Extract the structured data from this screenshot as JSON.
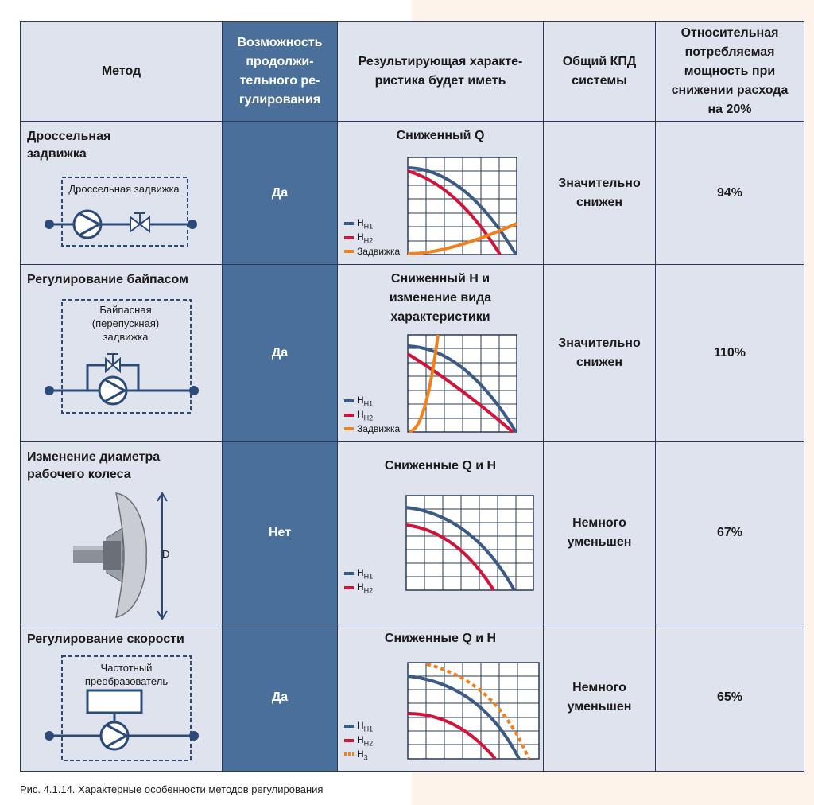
{
  "headers": {
    "method": "Метод",
    "continuous": "Возможность продолжи-тельного ре-гулирования",
    "result": "Результирующая характе-ристика будет иметь",
    "efficiency": "Общий КПД системы",
    "power": "Относительная потребляемая мощность при снижении расхода на 20%"
  },
  "rows": [
    {
      "method": "Дроссельная задвижка",
      "diagram_label": "Дроссельная задвижка",
      "continuous": "Да",
      "chart_title": "Сниженный Q",
      "legend": [
        "Н",
        "Н",
        "Задвижка"
      ],
      "legend_sub": [
        "Н1",
        "Н2",
        ""
      ],
      "efficiency": "Значительно снижен",
      "power": "94%"
    },
    {
      "method": "Регулирование байпасом",
      "diagram_label": "Байпасная (перепускная) задвижка",
      "continuous": "Да",
      "chart_title": "Сниженный Н и изменение вида характеристики",
      "legend": [
        "Н",
        "Н",
        "Задвижка"
      ],
      "legend_sub": [
        "Н1",
        "Н2",
        ""
      ],
      "efficiency": "Значительно снижен",
      "power": "110%"
    },
    {
      "method": "Изменение диаметра рабочего колеса",
      "diagram_label": "D",
      "continuous": "Нет",
      "chart_title": "Сниженные Q и Н",
      "legend": [
        "Н",
        "Н"
      ],
      "legend_sub": [
        "Н1",
        "Н2"
      ],
      "efficiency": "Немного уменьшен",
      "power": "67%"
    },
    {
      "method": "Регулирование скорости",
      "diagram_label": "Частотный преобразователь",
      "continuous": "Да",
      "chart_title": "Сниженные Q и Н",
      "legend": [
        "Н",
        "Н",
        "Н"
      ],
      "legend_sub": [
        "Н1",
        "Н2",
        "3"
      ],
      "efficiency": "Немного уменьшен",
      "power": "65%"
    }
  ],
  "caption": "Рис. 4.1.14. Характерные особенности методов регулирования",
  "colors": {
    "blue_curve": "#3b5a85",
    "red_curve": "#d2143a",
    "orange_curve": "#f0821e",
    "header_blue": "#4a6f9a",
    "cell_bg": "#dfe3ee"
  }
}
